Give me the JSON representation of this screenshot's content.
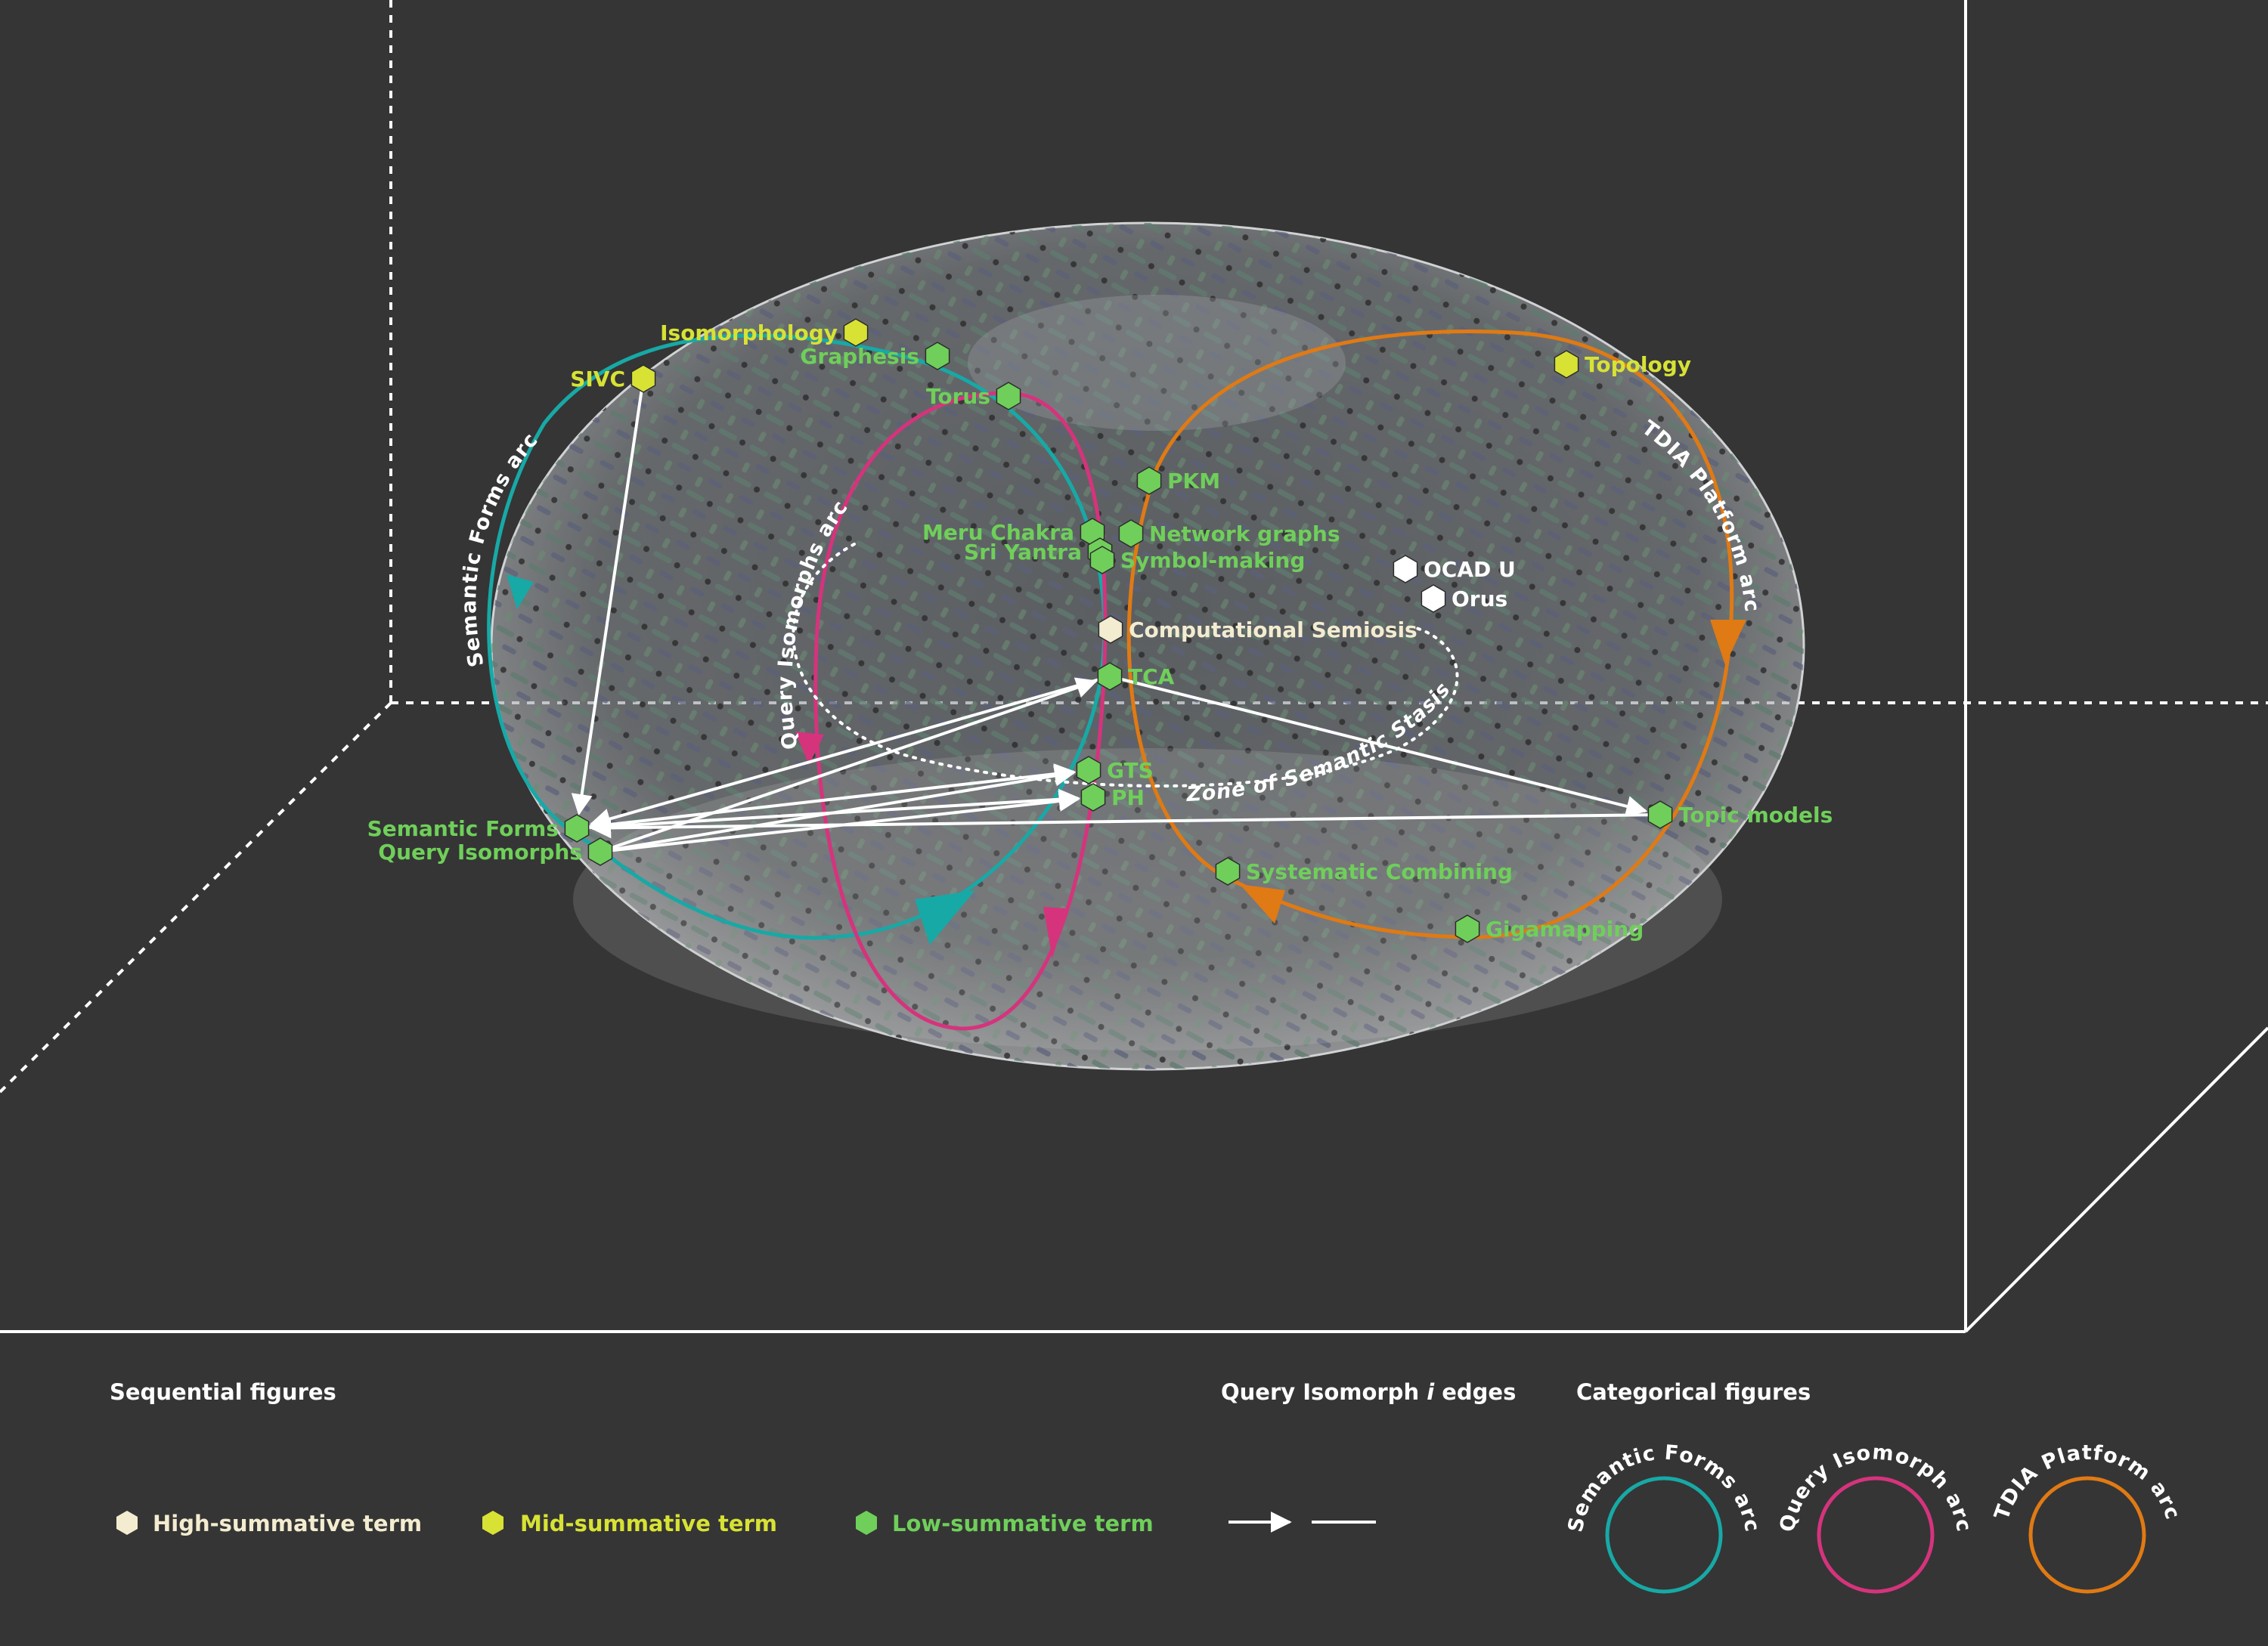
{
  "colors": {
    "background": "#353535",
    "semantic_forms_arc": "#17a9a6",
    "query_isomorphs_arc": "#d6337d",
    "tdia_platform_arc": "#e07a14",
    "high_summative": "#f3ecd0",
    "mid_summative": "#d7e234",
    "low_summative": "#6fcf5a",
    "edge": "#ffffff"
  },
  "nodes": {
    "isomorphology": {
      "label": "Isomorphology",
      "tier": "mid"
    },
    "graphesis": {
      "label": "Graphesis",
      "tier": "low"
    },
    "sivc": {
      "label": "SIVC",
      "tier": "mid"
    },
    "torus": {
      "label": "Torus",
      "tier": "low"
    },
    "topology": {
      "label": "Topology",
      "tier": "mid"
    },
    "pkm": {
      "label": "PKM",
      "tier": "low"
    },
    "meru_chakra": {
      "label": "Meru Chakra",
      "tier": "low"
    },
    "sri_yantra": {
      "label": "Sri Yantra",
      "tier": "low"
    },
    "network_graphs": {
      "label": "Network graphs",
      "tier": "low"
    },
    "symbol_making": {
      "label": "Symbol-making",
      "tier": "low"
    },
    "ocad_u": {
      "label": "OCAD U",
      "tier": "white"
    },
    "orus": {
      "label": "Orus",
      "tier": "white"
    },
    "computational_semiosis": {
      "label": "Computational Semiosis",
      "tier": "high"
    },
    "tca": {
      "label": "TCA",
      "tier": "low"
    },
    "gts": {
      "label": "GTS",
      "tier": "low"
    },
    "ph": {
      "label": "PH",
      "tier": "low"
    },
    "semantic_forms": {
      "label": "Semantic Forms",
      "tier": "low"
    },
    "query_isomorphs": {
      "label": "Query Isomorphs",
      "tier": "low"
    },
    "topic_models": {
      "label": "Topic models",
      "tier": "low"
    },
    "systematic_combining": {
      "label": "Systematic Combining",
      "tier": "low"
    },
    "gigamapping": {
      "label": "Gigamapping",
      "tier": "low"
    }
  },
  "arcs": {
    "semantic_forms_arc": "Semantic Forms arc",
    "query_isomorphs_arc": "Query Isomorphs arc",
    "tdia_platform_arc": "TDIA Platform arc",
    "zone_of_semantic_stasis": "Zone of Semantic Stasis"
  },
  "edges": [
    [
      "sivc",
      "semantic_forms"
    ],
    [
      "tca",
      "semantic_forms"
    ],
    [
      "tca",
      "topic_models"
    ],
    [
      "topic_models",
      "semantic_forms"
    ],
    [
      "query_isomorphs",
      "tca"
    ],
    [
      "query_isomorphs",
      "gts"
    ],
    [
      "query_isomorphs",
      "ph"
    ],
    [
      "semantic_forms",
      "gts"
    ],
    [
      "semantic_forms",
      "ph"
    ]
  ],
  "legend": {
    "sequential_title": "Sequential figures",
    "high_label": "High-summative term",
    "mid_label": "Mid-summative term",
    "low_label": "Low-summative term",
    "edges_title_prefix": "Query Isomorph ",
    "edges_title_italic": "i",
    "edges_title_suffix": " edges",
    "categorical_title": "Categorical figures",
    "cat_semantic": "Semantic Forms arc",
    "cat_query": "Query Isomorph arc",
    "cat_tdia": "TDIA Platform arc"
  }
}
